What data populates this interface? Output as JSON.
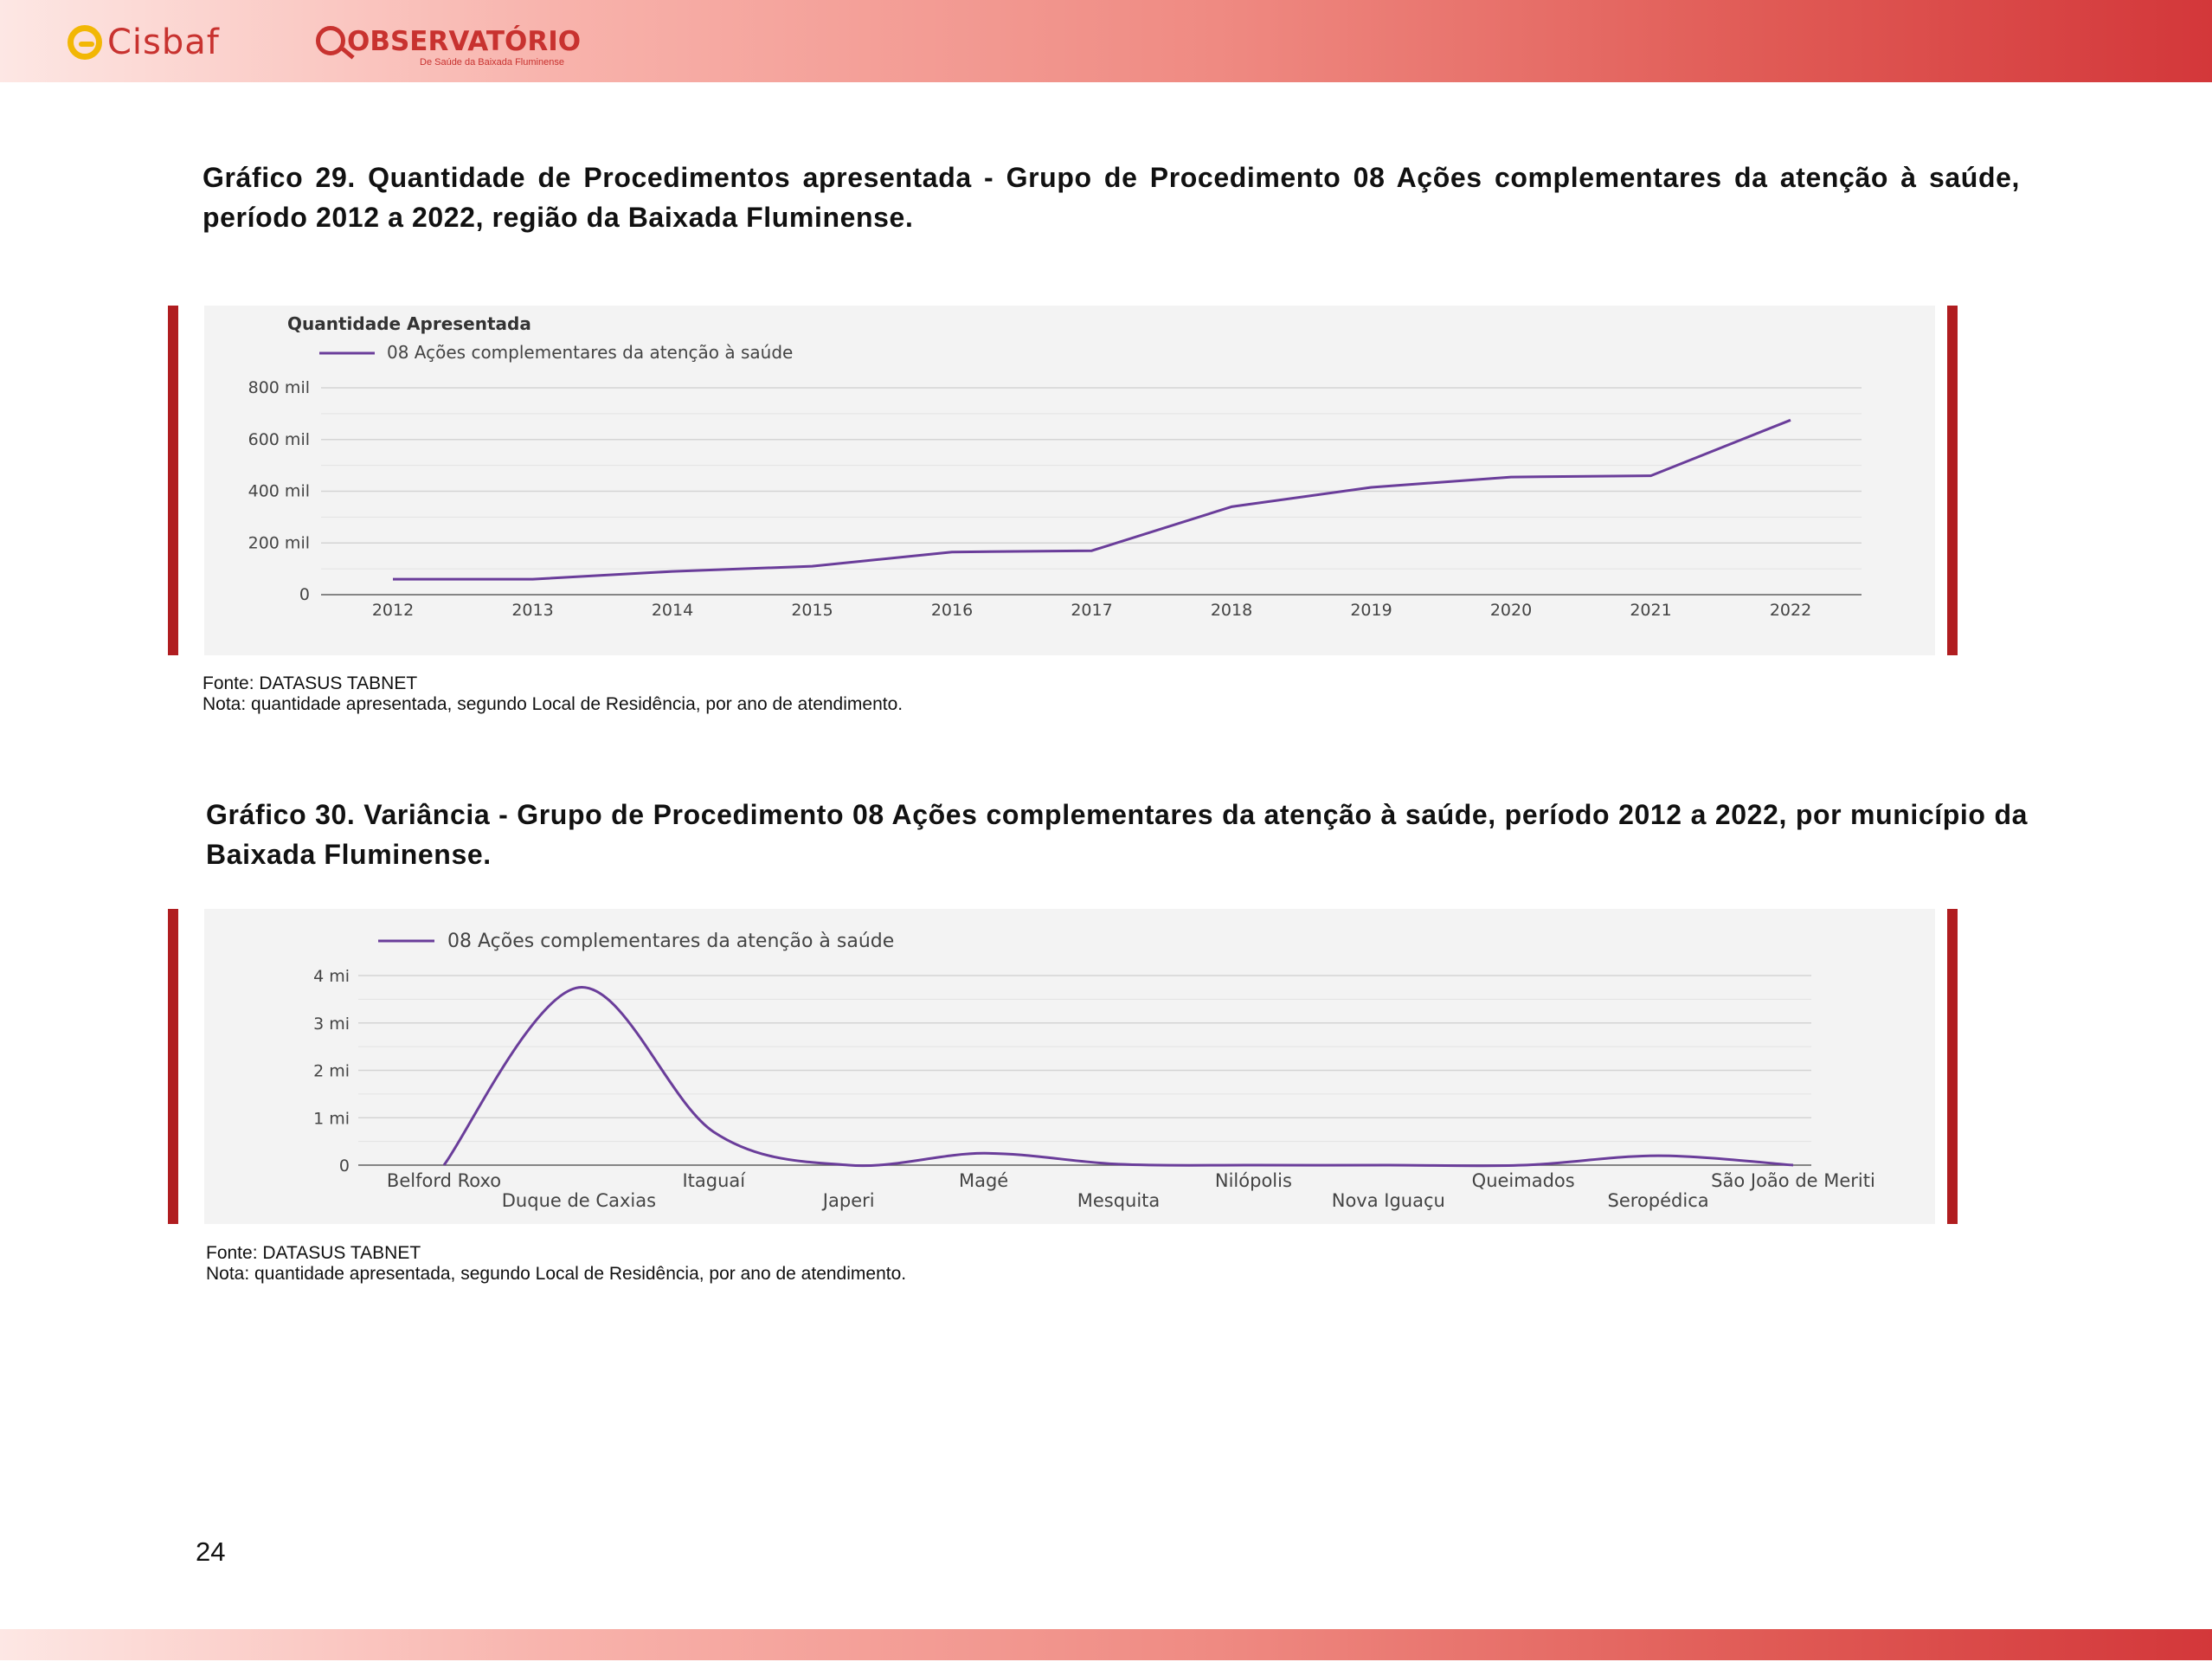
{
  "header": {
    "logo_cisbaf": "Cisbaf",
    "logo_observatorio": "OBSERVATÓRIO",
    "logo_observatorio_sub": "De Saúde da Baixada Fluminense",
    "accent_color": "#d3373a"
  },
  "figure1": {
    "caption": "Gráfico 29. Quantidade de Procedimentos apresentada - Grupo de Procedimento 08 Ações complementares da atenção à saúde, período 2012 a 2022, região da Baixada Fluminense.",
    "source_line": "Fonte: DATASUS TABNET",
    "note_line": "Nota: quantidade apresentada, segundo Local de Residência, por ano de atendimento."
  },
  "figure2": {
    "caption": "Gráfico 30. Variância - Grupo de Procedimento 08 Ações complementares da atenção à saúde, período 2012 a 2022, por município da Baixada Fluminense.",
    "source_line": "Fonte: DATASUS TABNET",
    "note_line": "Nota: quantidade apresentada, segundo Local de Residência, por ano de atendimento."
  },
  "page_number": "24",
  "chart_data": [
    {
      "type": "line",
      "title": "Quantidade Apresentada",
      "xlabel": "",
      "ylabel": "",
      "categories": [
        "2012",
        "2013",
        "2014",
        "2015",
        "2016",
        "2017",
        "2018",
        "2019",
        "2020",
        "2021",
        "2022"
      ],
      "series": [
        {
          "name": "08 Ações complementares da atenção à saúde",
          "color": "#6a3d9a",
          "values": [
            60000,
            60000,
            90000,
            110000,
            165000,
            170000,
            340000,
            415000,
            455000,
            460000,
            675000
          ]
        }
      ],
      "yticks": [
        "0",
        "200 mil",
        "400 mil",
        "600 mil",
        "800 mil"
      ],
      "ylim": [
        0,
        800000
      ],
      "grid": true,
      "legend": "top-left"
    },
    {
      "type": "line",
      "title": "",
      "xlabel": "",
      "ylabel": "",
      "categories": [
        "Belford Roxo",
        "Duque de Caxias",
        "Itaguaí",
        "Japeri",
        "Magé",
        "Mesquita",
        "Nilópolis",
        "Nova Iguaçu",
        "Queimados",
        "Seropédica",
        "São João de Meriti"
      ],
      "series": [
        {
          "name": "08 Ações complementares da atenção à saúde",
          "color": "#6a3d9a",
          "values": [
            0,
            3.75,
            0.7,
            0.0,
            0.25,
            0.02,
            0.0,
            0.0,
            0.0,
            0.2,
            0.0
          ]
        }
      ],
      "yticks": [
        "0",
        "1 mi",
        "2 mi",
        "3 mi",
        "4 mi"
      ],
      "ylim": [
        0,
        4
      ],
      "smooth": true,
      "grid": true,
      "legend": "top-left"
    }
  ]
}
